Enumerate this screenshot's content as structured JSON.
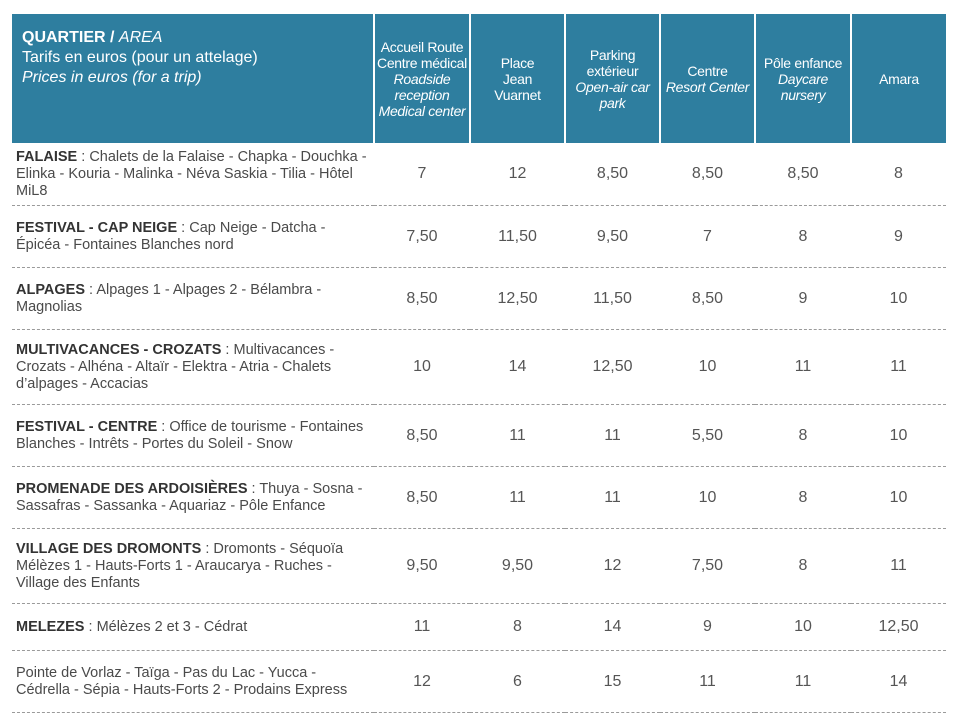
{
  "header": {
    "area_label": "QUARTIER / ",
    "area_label_en": "AREA",
    "tariff_fr": "Tarifs en euros (pour un attelage)",
    "tariff_en": "Prices in euros (for a trip)",
    "columns": [
      {
        "fr": "Accueil Route Centre médical",
        "en": "Roadside reception Medical center"
      },
      {
        "fr": "Place Jean Vuarnet",
        "en": ""
      },
      {
        "fr": "Parking extérieur",
        "en": "Open-air car park"
      },
      {
        "fr": "Centre",
        "en": "Resort Center"
      },
      {
        "fr": "Pôle enfance",
        "en": "Daycare nursery"
      },
      {
        "fr": "Amara",
        "en": ""
      }
    ]
  },
  "rows": [
    {
      "name": "FALAISE",
      "desc": " : Chalets de la Falaise - Chapka - Douchka - Elinka - Kouria - Malinka - Néva Saskia - Tilia - Hôtel MiL8",
      "values": [
        "7",
        "12",
        "8,50",
        "8,50",
        "8,50",
        "8"
      ]
    },
    {
      "name": "FESTIVAL - CAP NEIGE",
      "desc": " : Cap Neige - Datcha - Épicéa - Fontaines Blanches nord",
      "values": [
        "7,50",
        "11,50",
        "9,50",
        "7",
        "8",
        "9"
      ]
    },
    {
      "name": "ALPAGES",
      "desc": " : Alpages 1 - Alpages 2 - Bélambra - Magnolias",
      "values": [
        "8,50",
        "12,50",
        "11,50",
        "8,50",
        "9",
        "10"
      ]
    },
    {
      "name": "MULTIVACANCES - CROZATS",
      "desc": " : Multivacances - Crozats - Alhéna - Altaïr - Elektra - Atria - Chalets d’alpages - Accacias",
      "values": [
        "10",
        "14",
        "12,50",
        "10",
        "11",
        "11"
      ]
    },
    {
      "name": "FESTIVAL - CENTRE",
      "desc": " : Office de tourisme - Fontaines Blanches - Intrêts - Portes du Soleil - Snow",
      "values": [
        "8,50",
        "11",
        "11",
        "5,50",
        "8",
        "10"
      ]
    },
    {
      "name": "PROMENADE DES ARDOISIÈRES",
      "desc": " : Thuya - Sosna - Sassafras - Sassanka - Aquariaz - Pôle Enfance",
      "values": [
        "8,50",
        "11",
        "11",
        "10",
        "8",
        "10"
      ]
    },
    {
      "name": "VILLAGE DES DROMONTS",
      "desc": " : Dromonts - Séquoïa Mélèzes 1 - Hauts-Forts 1 - Araucarya - Ruches - Village des Enfants",
      "values": [
        "9,50",
        "9,50",
        "12",
        "7,50",
        "8",
        "11"
      ]
    },
    {
      "name": "MELEZES",
      "desc": " : Mélèzes 2 et 3 - Cédrat",
      "values": [
        "11",
        "8",
        "14",
        "9",
        "10",
        "12,50"
      ]
    },
    {
      "name": "",
      "desc": "Pointe de Vorlaz - Taïga - Pas du Lac - Yucca - Cédrella - Sépia - Hauts-Forts 2 - Prodains Express",
      "values": [
        "12",
        "6",
        "15",
        "11",
        "11",
        "14"
      ]
    }
  ]
}
